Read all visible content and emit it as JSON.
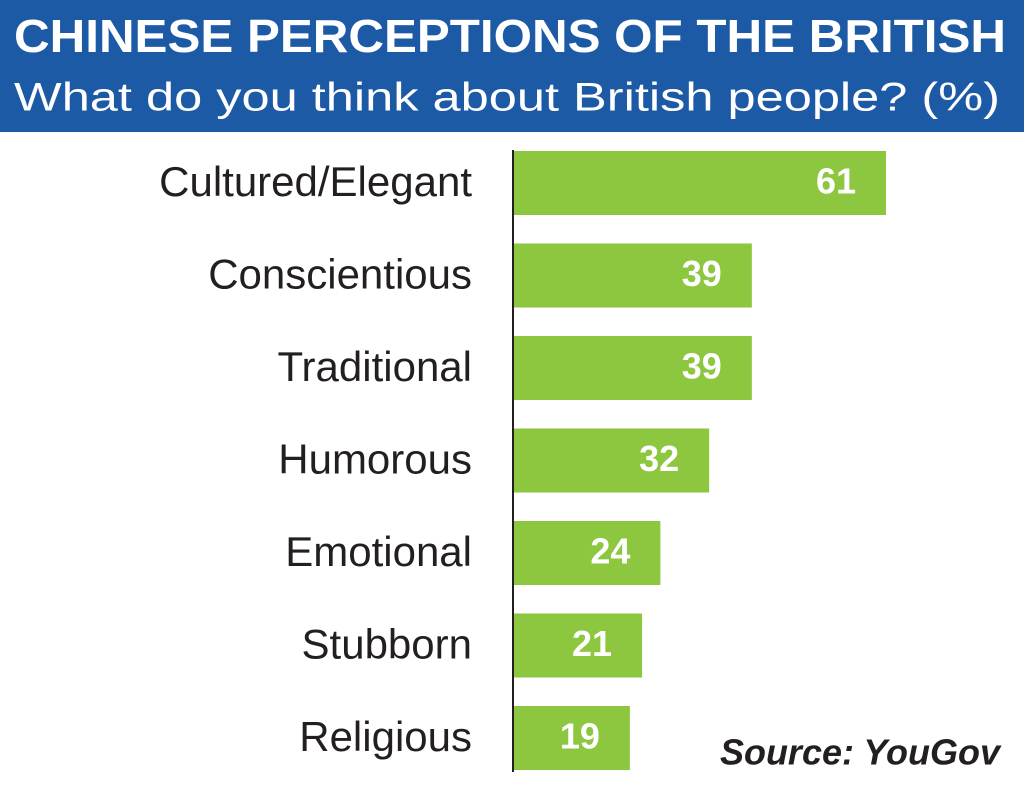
{
  "chart_data": {
    "type": "bar",
    "orientation": "horizontal",
    "title": "CHINESE PERCEPTIONS OF THE BRITISH",
    "subtitle": "What do you think about British people? (%)",
    "categories": [
      "Cultured/Elegant",
      "Conscientious",
      "Traditional",
      "Humorous",
      "Emotional",
      "Stubborn",
      "Religious"
    ],
    "values": [
      61,
      39,
      39,
      32,
      24,
      21,
      19
    ],
    "color": "#8dc63f",
    "source": "Source: YouGov"
  }
}
